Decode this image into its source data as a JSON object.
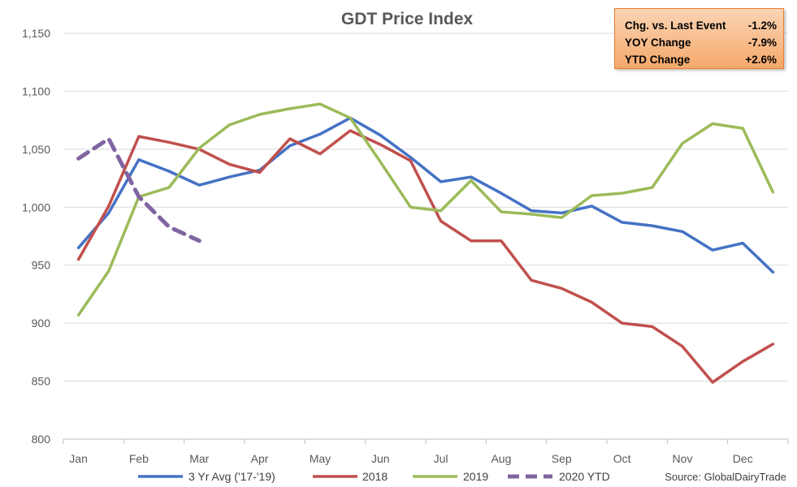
{
  "chart_data": {
    "type": "line",
    "title": "GDT Price Index",
    "ylim": [
      800,
      1150
    ],
    "yticks": [
      "800",
      "850",
      "900",
      "950",
      "1,000",
      "1,050",
      "1,100",
      "1,150"
    ],
    "ytick_values": [
      800,
      850,
      900,
      950,
      1000,
      1050,
      1100,
      1150
    ],
    "month_labels": [
      "Jan",
      "Feb",
      "Mar",
      "Apr",
      "May",
      "Jun",
      "Jul",
      "Aug",
      "Sep",
      "Oct",
      "Nov",
      "Dec"
    ],
    "grid": true,
    "legend_position": "bottom",
    "series": [
      {
        "name": "3 Yr Avg ('17-'19)",
        "color": "#4472c4",
        "dash": false,
        "values": [
          965,
          995,
          1041,
          1031,
          1019,
          1026,
          1032,
          1053,
          1063,
          1077,
          1062,
          1043,
          1022,
          1026,
          1012,
          997,
          995,
          1001,
          987,
          984,
          979,
          963,
          969,
          944
        ]
      },
      {
        "name": "2018",
        "color": "#c0504d",
        "dash": false,
        "values": [
          955,
          1001,
          1061,
          1056,
          1050,
          1037,
          1030,
          1059,
          1046,
          1066,
          1054,
          1040,
          988,
          971,
          971,
          937,
          930,
          918,
          900,
          897,
          880,
          849,
          867,
          882
        ]
      },
      {
        "name": "2019",
        "color": "#9bbb59",
        "dash": false,
        "values": [
          907,
          945,
          1009,
          1017,
          1051,
          1071,
          1080,
          1085,
          1089,
          1077,
          1039,
          1000,
          997,
          1023,
          996,
          994,
          991,
          1010,
          1012,
          1017,
          1055,
          1072,
          1068,
          1013
        ]
      },
      {
        "name": "2020 YTD",
        "color": "#8064a2",
        "dash": true,
        "values": [
          1042,
          1059,
          1009,
          983,
          971
        ]
      }
    ]
  },
  "info_box": {
    "rows": [
      {
        "label": "Chg. vs. Last Event",
        "value": "-1.2%"
      },
      {
        "label": "YOY Change",
        "value": "-7.9%"
      },
      {
        "label": "YTD Change",
        "value": "+2.6%"
      }
    ]
  },
  "source": "Source: GlobalDairyTrade"
}
